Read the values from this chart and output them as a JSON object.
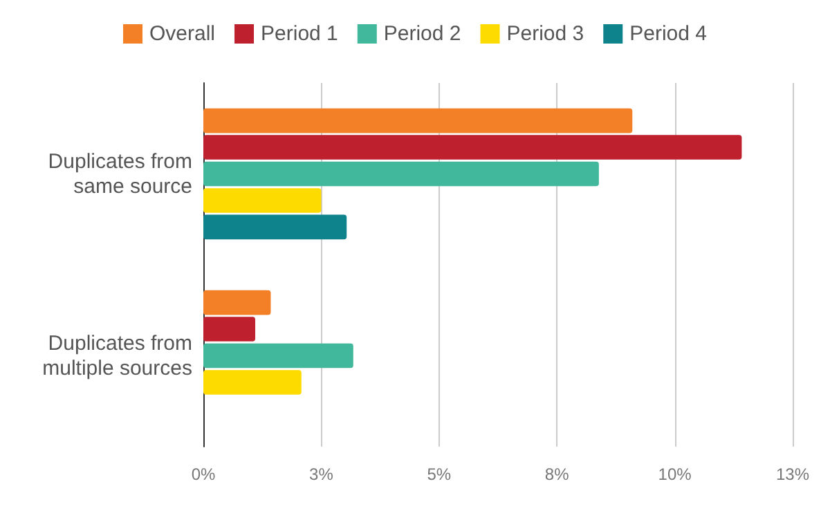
{
  "chart_data": {
    "type": "bar",
    "orientation": "horizontal",
    "categories": [
      "Duplicates from same source",
      "Duplicates from multiple sources"
    ],
    "series": [
      {
        "name": "Overall",
        "color": "#f37f27",
        "values": [
          9.1,
          1.43
        ]
      },
      {
        "name": "Period 1",
        "color": "#be202e",
        "values": [
          11.42,
          1.1
        ]
      },
      {
        "name": "Period 2",
        "color": "#41b79b",
        "values": [
          8.39,
          3.18
        ]
      },
      {
        "name": "Period 3",
        "color": "#fddb00",
        "values": [
          2.5,
          2.08
        ]
      },
      {
        "name": "Period 4",
        "color": "#0e838c",
        "values": [
          3.04,
          0
        ]
      }
    ],
    "xlim": [
      0,
      12.5
    ],
    "xticks": [
      {
        "value": 0,
        "label": "0%"
      },
      {
        "value": 2.5,
        "label": "3%"
      },
      {
        "value": 5,
        "label": "5%"
      },
      {
        "value": 7.5,
        "label": "8%"
      },
      {
        "value": 10,
        "label": "10%"
      },
      {
        "value": 12.5,
        "label": "13%"
      }
    ],
    "grid": "x",
    "legend": "top"
  }
}
